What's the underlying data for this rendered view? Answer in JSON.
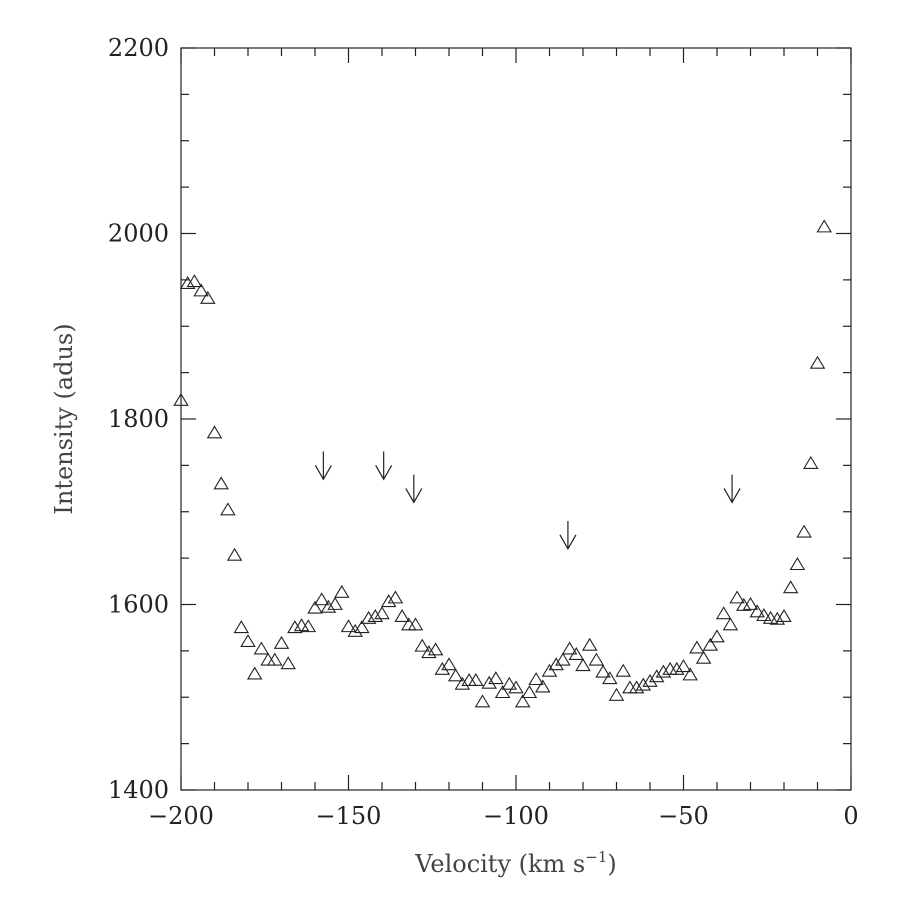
{
  "chart_data": {
    "type": "scatter",
    "marker": "open-triangle",
    "xlabel": "Velocity (km s",
    "xlabel_sup": "−1",
    "xlabel_suffix": ")",
    "ylabel": "Intensity (adus)",
    "xlim": [
      -200,
      0
    ],
    "ylim": [
      1400,
      2200
    ],
    "x_ticks": [
      -200,
      -150,
      -100,
      -50,
      0
    ],
    "x_tick_labels": [
      "−200",
      "−150",
      "−100",
      "−50",
      "0"
    ],
    "y_ticks": [
      1400,
      1600,
      1800,
      2000,
      2200
    ],
    "y_tick_labels": [
      "1400",
      "1600",
      "1800",
      "2000",
      "2200"
    ],
    "x_minor_step": 10,
    "y_minor_step": 50,
    "grid": false,
    "series": [
      {
        "points": [
          [
            -200,
            1820
          ],
          [
            -198,
            1946
          ],
          [
            -196,
            1948
          ],
          [
            -194,
            1938
          ],
          [
            -192,
            1930
          ],
          [
            -190,
            1785
          ],
          [
            -188,
            1730
          ],
          [
            -186,
            1702
          ],
          [
            -184,
            1653
          ],
          [
            -182,
            1575
          ],
          [
            -180,
            1560
          ],
          [
            -178,
            1525
          ],
          [
            -176,
            1552
          ],
          [
            -174,
            1540
          ],
          [
            -172,
            1540
          ],
          [
            -170,
            1558
          ],
          [
            -168,
            1536
          ],
          [
            -166,
            1575
          ],
          [
            -164,
            1577
          ],
          [
            -162,
            1576
          ],
          [
            -160,
            1596
          ],
          [
            -158,
            1605
          ],
          [
            -156,
            1597
          ],
          [
            -154,
            1600
          ],
          [
            -152,
            1613
          ],
          [
            -150,
            1576
          ],
          [
            -148,
            1571
          ],
          [
            -146,
            1575
          ],
          [
            -144,
            1585
          ],
          [
            -142,
            1587
          ],
          [
            -140,
            1590
          ],
          [
            -138,
            1603
          ],
          [
            -136,
            1607
          ],
          [
            -134,
            1587
          ],
          [
            -132,
            1578
          ],
          [
            -130,
            1578
          ],
          [
            -128,
            1555
          ],
          [
            -126,
            1548
          ],
          [
            -124,
            1551
          ],
          [
            -122,
            1530
          ],
          [
            -120,
            1535
          ],
          [
            -118,
            1523
          ],
          [
            -116,
            1514
          ],
          [
            -114,
            1518
          ],
          [
            -112,
            1518
          ],
          [
            -110,
            1495
          ],
          [
            -108,
            1515
          ],
          [
            -106,
            1520
          ],
          [
            -104,
            1505
          ],
          [
            -102,
            1514
          ],
          [
            -100,
            1510
          ],
          [
            -98,
            1495
          ],
          [
            -96,
            1505
          ],
          [
            -94,
            1519
          ],
          [
            -92,
            1511
          ],
          [
            -90,
            1528
          ],
          [
            -88,
            1535
          ],
          [
            -86,
            1540
          ],
          [
            -84,
            1552
          ],
          [
            -82,
            1546
          ],
          [
            -80,
            1534
          ],
          [
            -78,
            1556
          ],
          [
            -76,
            1540
          ],
          [
            -74,
            1527
          ],
          [
            -72,
            1520
          ],
          [
            -70,
            1502
          ],
          [
            -68,
            1528
          ],
          [
            -66,
            1510
          ],
          [
            -64,
            1510
          ],
          [
            -62,
            1513
          ],
          [
            -60,
            1517
          ],
          [
            -58,
            1522
          ],
          [
            -56,
            1527
          ],
          [
            -54,
            1530
          ],
          [
            -52,
            1530
          ],
          [
            -50,
            1533
          ],
          [
            -48,
            1524
          ],
          [
            -46,
            1553
          ],
          [
            -44,
            1542
          ],
          [
            -42,
            1556
          ],
          [
            -40,
            1565
          ],
          [
            -38,
            1590
          ],
          [
            -36,
            1578
          ],
          [
            -34,
            1607
          ],
          [
            -32,
            1599
          ],
          [
            -30,
            1600
          ],
          [
            -28,
            1592
          ],
          [
            -26,
            1588
          ],
          [
            -24,
            1585
          ],
          [
            -22,
            1584
          ],
          [
            -20,
            1587
          ],
          [
            -18,
            1618
          ],
          [
            -16,
            1643
          ],
          [
            -14,
            1678
          ],
          [
            -12,
            1752
          ],
          [
            -10,
            1860
          ],
          [
            -8,
            2007
          ]
        ]
      }
    ],
    "annotations": {
      "arrows_at_velocity": [
        {
          "x": -157.5,
          "y_top": 1765,
          "y_tip": 1735
        },
        {
          "x": -139.5,
          "y_top": 1765,
          "y_tip": 1735
        },
        {
          "x": -130.5,
          "y_top": 1740,
          "y_tip": 1710
        },
        {
          "x": -84.5,
          "y_top": 1690,
          "y_tip": 1660
        },
        {
          "x": -35.5,
          "y_top": 1740,
          "y_tip": 1710
        }
      ]
    }
  }
}
